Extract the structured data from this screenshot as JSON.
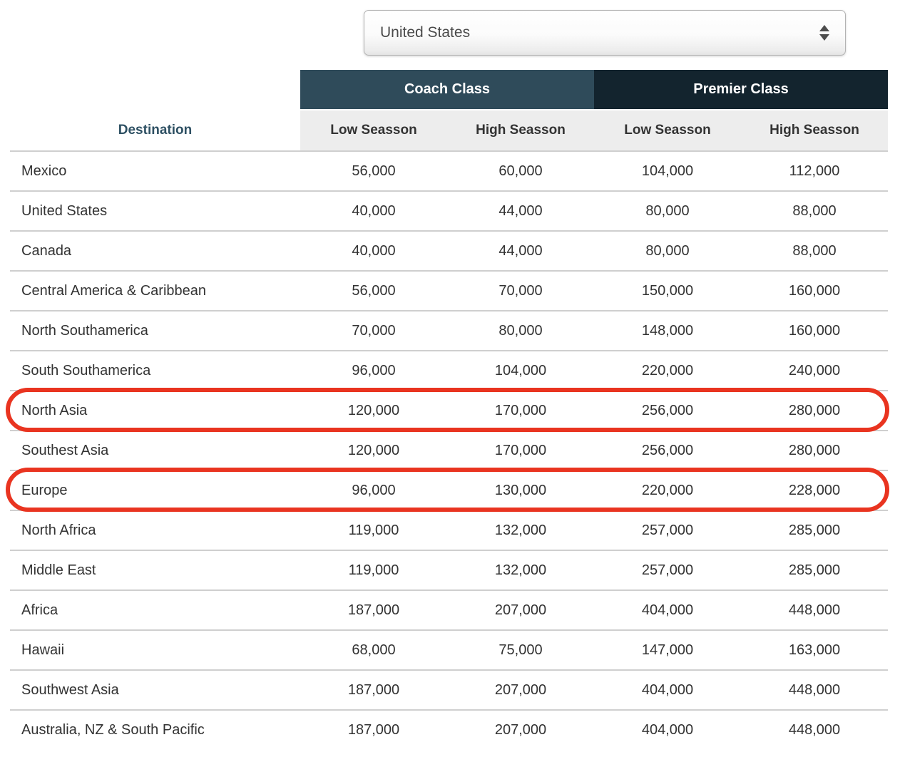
{
  "selector": {
    "value": "United States",
    "icon": "up-down-stepper"
  },
  "table": {
    "destination_header": "Destination",
    "class_headers": [
      {
        "label": "Coach Class"
      },
      {
        "label": "Premier Class"
      }
    ],
    "season_headers": [
      "Low Seasson",
      "High Seasson",
      "Low Seasson",
      "High Seasson"
    ],
    "rows": [
      {
        "destination": "Mexico",
        "values": [
          "56,000",
          "60,000",
          "104,000",
          "112,000"
        ],
        "highlighted": false
      },
      {
        "destination": "United States",
        "values": [
          "40,000",
          "44,000",
          "80,000",
          "88,000"
        ],
        "highlighted": false
      },
      {
        "destination": "Canada",
        "values": [
          "40,000",
          "44,000",
          "80,000",
          "88,000"
        ],
        "highlighted": false
      },
      {
        "destination": "Central America & Caribbean",
        "values": [
          "56,000",
          "70,000",
          "150,000",
          "160,000"
        ],
        "highlighted": false
      },
      {
        "destination": "North Southamerica",
        "values": [
          "70,000",
          "80,000",
          "148,000",
          "160,000"
        ],
        "highlighted": false
      },
      {
        "destination": "South Southamerica",
        "values": [
          "96,000",
          "104,000",
          "220,000",
          "240,000"
        ],
        "highlighted": false
      },
      {
        "destination": "North Asia",
        "values": [
          "120,000",
          "170,000",
          "256,000",
          "280,000"
        ],
        "highlighted": true
      },
      {
        "destination": "Southest Asia",
        "values": [
          "120,000",
          "170,000",
          "256,000",
          "280,000"
        ],
        "highlighted": false
      },
      {
        "destination": "Europe",
        "values": [
          "96,000",
          "130,000",
          "220,000",
          "228,000"
        ],
        "highlighted": true
      },
      {
        "destination": "North Africa",
        "values": [
          "119,000",
          "132,000",
          "257,000",
          "285,000"
        ],
        "highlighted": false
      },
      {
        "destination": "Middle East",
        "values": [
          "119,000",
          "132,000",
          "257,000",
          "285,000"
        ],
        "highlighted": false
      },
      {
        "destination": "Africa",
        "values": [
          "187,000",
          "207,000",
          "404,000",
          "448,000"
        ],
        "highlighted": false
      },
      {
        "destination": "Hawaii",
        "values": [
          "68,000",
          "75,000",
          "147,000",
          "163,000"
        ],
        "highlighted": false
      },
      {
        "destination": "Southwest Asia",
        "values": [
          "187,000",
          "207,000",
          "404,000",
          "448,000"
        ],
        "highlighted": false
      },
      {
        "destination": "Australia, NZ & South Pacific",
        "values": [
          "187,000",
          "207,000",
          "404,000",
          "448,000"
        ],
        "highlighted": false
      }
    ]
  },
  "colors": {
    "coach_header_bg": "#2F4B5A",
    "premier_header_bg": "#13242E",
    "season_row_bg": "#EDEDED",
    "destination_header_text": "#2E5063",
    "body_text": "#333333",
    "separator": "#CFCFCF",
    "highlight_oval": "#E93420"
  }
}
